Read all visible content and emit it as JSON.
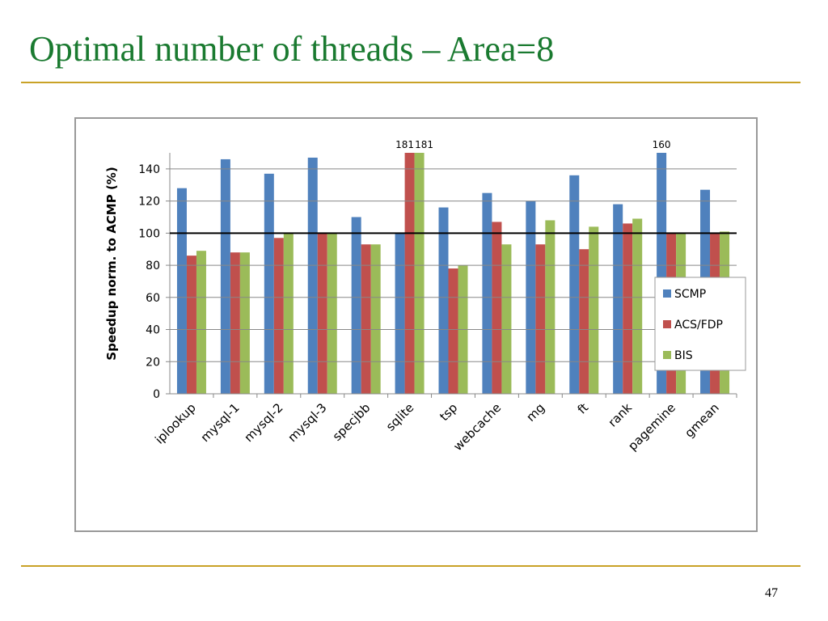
{
  "slide": {
    "title": "Optimal number of threads – Area=8",
    "page_number": "47"
  },
  "chart_data": {
    "type": "bar",
    "y_label": "Speedup norm. to ACMP (%)",
    "categories": [
      "iplookup",
      "mysql-1",
      "mysql-2",
      "mysql-3",
      "specjbb",
      "sqlite",
      "tsp",
      "webcache",
      "mg",
      "ft",
      "rank",
      "pagemine",
      "gmean"
    ],
    "series": [
      {
        "name": "SCMP",
        "color": "#4f81bd",
        "values": [
          128,
          146,
          137,
          147,
          110,
          100,
          116,
          125,
          120,
          136,
          118,
          160,
          127
        ],
        "value_labels": [
          null,
          null,
          null,
          null,
          null,
          null,
          null,
          null,
          null,
          null,
          null,
          "160",
          null
        ]
      },
      {
        "name": "ACS/FDP",
        "color": "#c0504d",
        "values": [
          86,
          88,
          97,
          100,
          93,
          181,
          78,
          107,
          93,
          90,
          106,
          100,
          100
        ],
        "value_labels": [
          null,
          null,
          null,
          null,
          null,
          "181",
          null,
          null,
          null,
          null,
          null,
          null,
          null
        ]
      },
      {
        "name": "BIS",
        "color": "#9bbb59",
        "values": [
          89,
          88,
          100,
          100,
          93,
          181,
          80,
          93,
          108,
          104,
          109,
          100,
          101
        ],
        "value_labels": [
          null,
          null,
          null,
          null,
          null,
          "181",
          null,
          null,
          null,
          null,
          null,
          null,
          null
        ]
      }
    ],
    "ylim": [
      0,
      150
    ],
    "yticks": [
      0,
      20,
      40,
      60,
      80,
      100,
      120,
      140
    ],
    "grid": true,
    "reference_line": 100,
    "legend": "right"
  }
}
